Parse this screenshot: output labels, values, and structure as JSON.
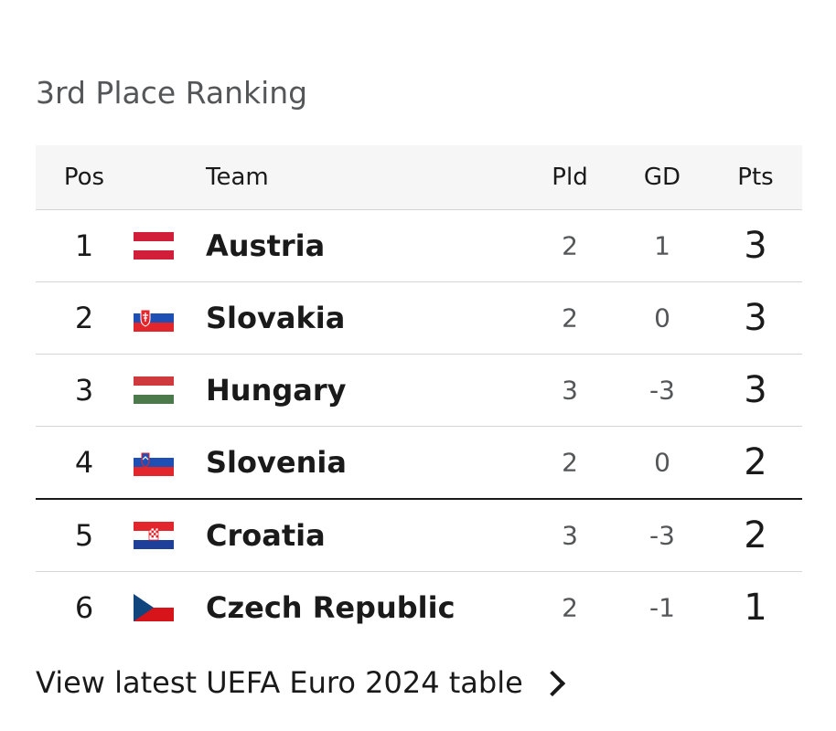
{
  "title": "3rd Place Ranking",
  "columns": {
    "pos": "Pos",
    "team": "Team",
    "pld": "Pld",
    "gd": "GD",
    "pts": "Pts"
  },
  "rows": [
    {
      "pos": "1",
      "team": "Austria",
      "flag": "austria-flag-icon",
      "pld": "2",
      "gd": "1",
      "pts": "3"
    },
    {
      "pos": "2",
      "team": "Slovakia",
      "flag": "slovakia-flag-icon",
      "pld": "2",
      "gd": "0",
      "pts": "3"
    },
    {
      "pos": "3",
      "team": "Hungary",
      "flag": "hungary-flag-icon",
      "pld": "3",
      "gd": "-3",
      "pts": "3"
    },
    {
      "pos": "4",
      "team": "Slovenia",
      "flag": "slovenia-flag-icon",
      "pld": "2",
      "gd": "0",
      "pts": "2"
    },
    {
      "pos": "5",
      "team": "Croatia",
      "flag": "croatia-flag-icon",
      "pld": "3",
      "gd": "-3",
      "pts": "2"
    },
    {
      "pos": "6",
      "team": "Czech Republic",
      "flag": "czech-republic-flag-icon",
      "pld": "2",
      "gd": "-1",
      "pts": "1"
    }
  ],
  "footer": {
    "link_label": "View latest UEFA Euro 2024 table",
    "icon": "chevron-right-icon"
  },
  "colors": {
    "title": "#545658",
    "text": "#1a1a1a",
    "header_bg": "#f6f6f6",
    "row_border": "#d5d5d5"
  }
}
